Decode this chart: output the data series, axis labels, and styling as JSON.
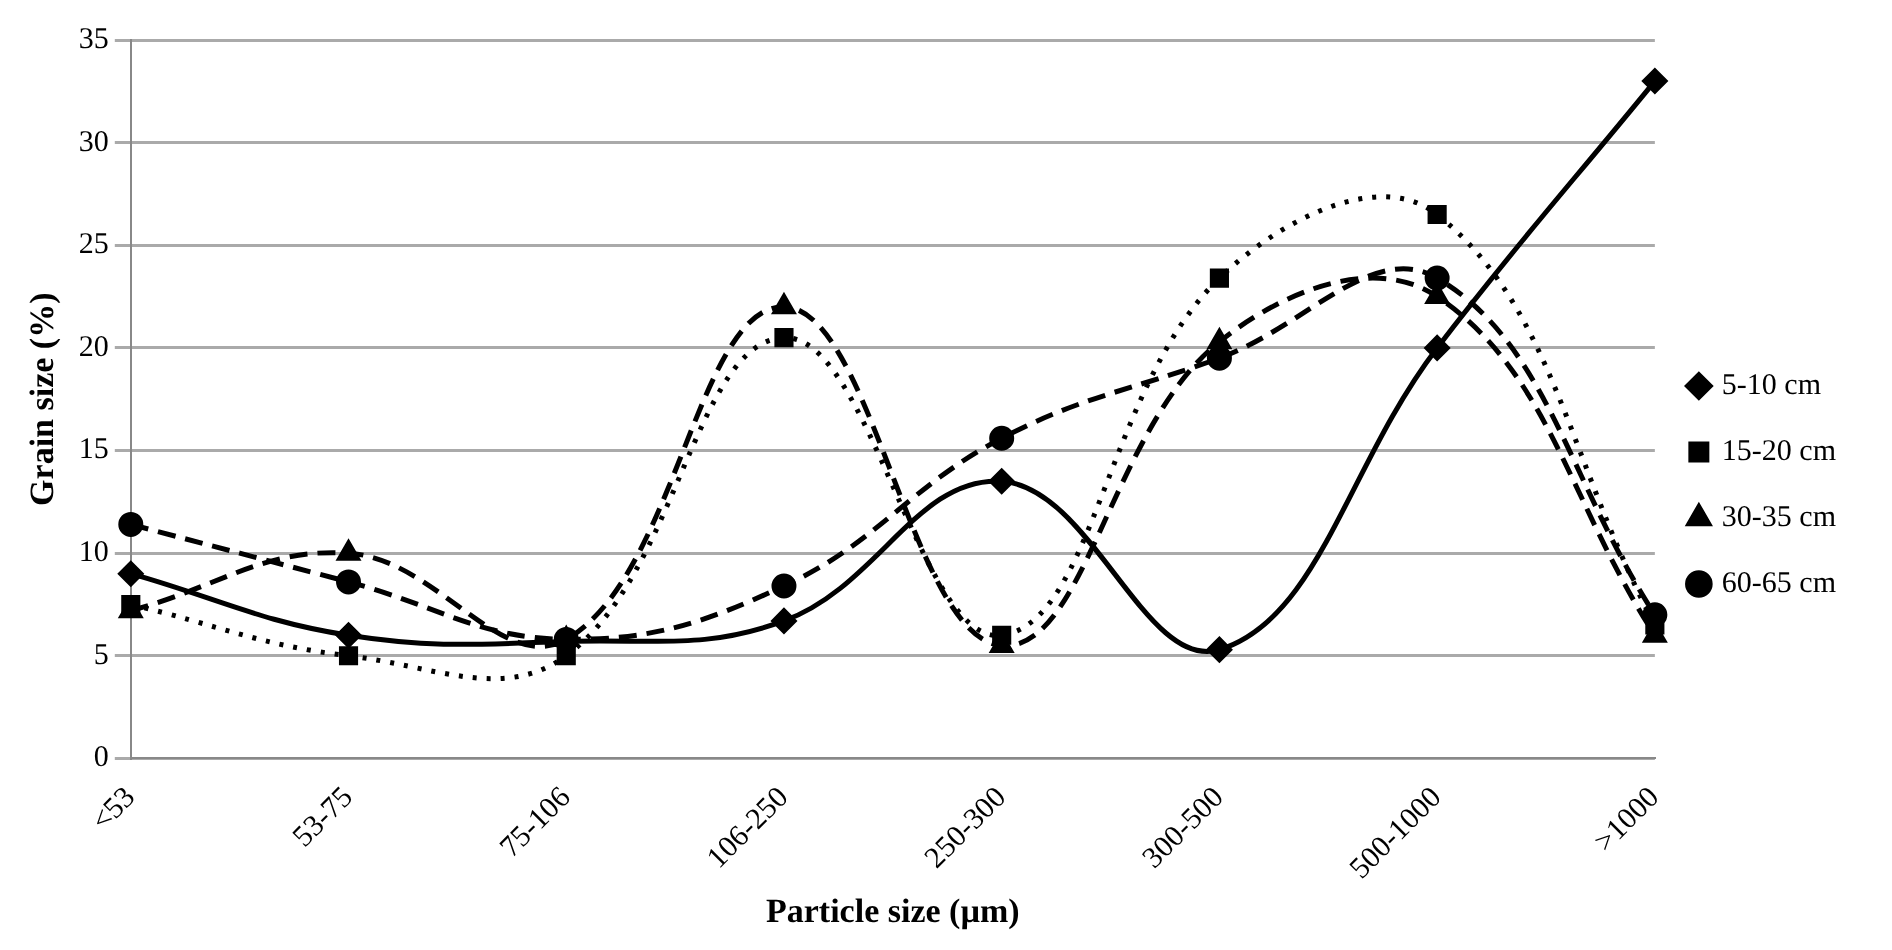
{
  "chart_data": {
    "type": "line",
    "xlabel": "Particle size (µm)",
    "ylabel": "Grain size (%)",
    "categories": [
      "<53",
      "53-75",
      "75-106",
      "106-250",
      "250-300",
      "300-500",
      "500-1000",
      ">1000"
    ],
    "ylim": [
      0,
      35
    ],
    "yticks": [
      0,
      5,
      10,
      15,
      20,
      25,
      30,
      35
    ],
    "grid": "y",
    "legend": "right",
    "series": [
      {
        "name": "5-10 cm",
        "color": "#000000",
        "marker": "diamond",
        "line_style": "solid",
        "values": [
          9,
          6,
          5.7,
          6.7,
          13.5,
          5.3,
          20,
          33
        ]
      },
      {
        "name": "15-20 cm",
        "color": "#000000",
        "marker": "square",
        "line_style": "dotted",
        "values": [
          7.5,
          5,
          5,
          20.5,
          6,
          23.4,
          26.5,
          6.5
        ]
      },
      {
        "name": "30-35 cm",
        "color": "#000000",
        "marker": "triangle",
        "line_style": "dashed",
        "values": [
          7.2,
          10,
          5.8,
          22,
          5.5,
          20.3,
          22.5,
          6
        ]
      },
      {
        "name": "60-65 cm",
        "color": "#000000",
        "marker": "circle",
        "line_style": "dashed",
        "values": [
          11.4,
          8.6,
          5.8,
          8.4,
          15.6,
          19.5,
          23.4,
          7
        ]
      }
    ]
  }
}
